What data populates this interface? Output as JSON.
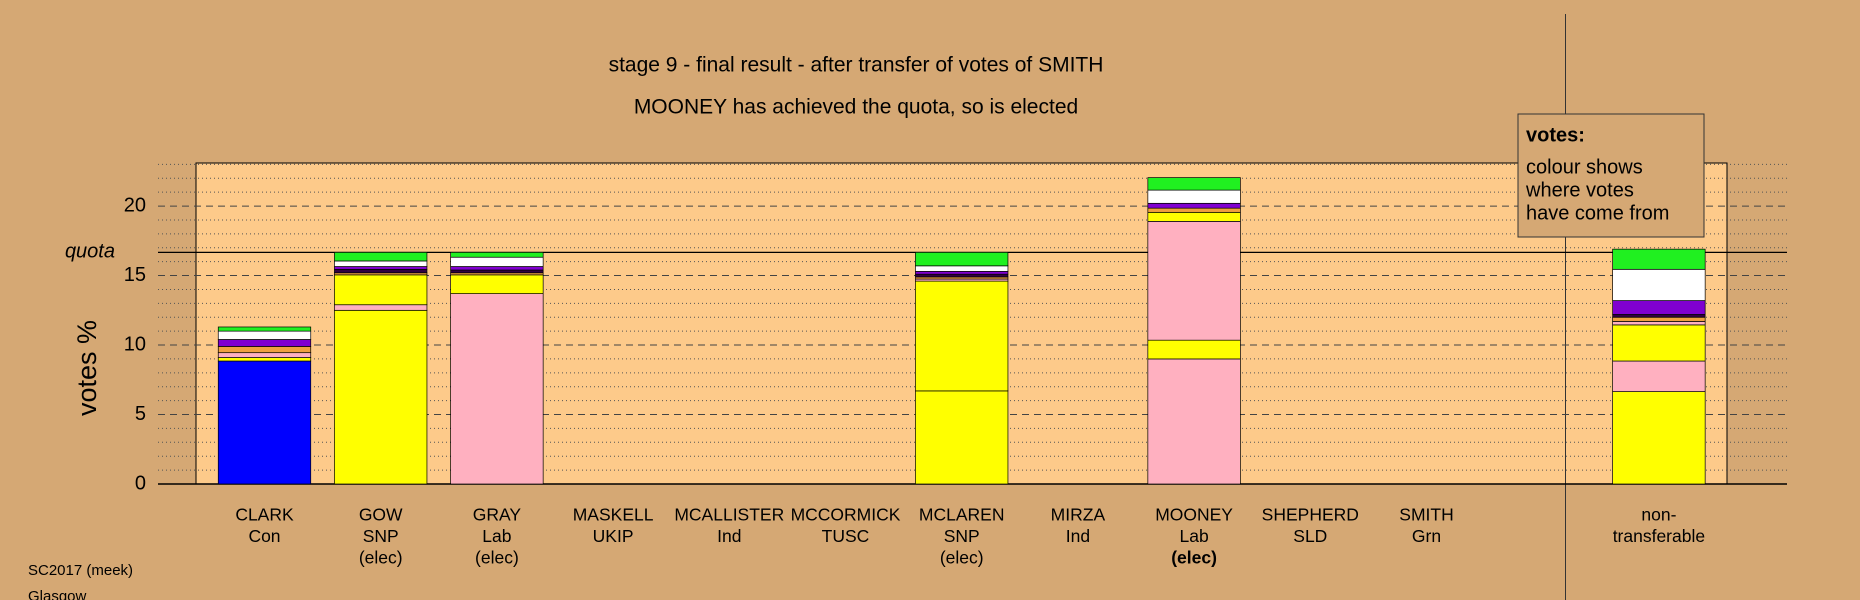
{
  "chart_data": {
    "type": "stacked-bar",
    "title": "stage 9 - final result - after transfer of votes of SMITH",
    "subtitle": "MOONEY has achieved the quota, so is elected",
    "y_label": "votes %",
    "quota_label": "quota",
    "quota": 16.67,
    "categories": [
      [
        "CLARK",
        "Con"
      ],
      [
        "GOW",
        "SNP",
        "(elec)"
      ],
      [
        "GRAY",
        "Lab",
        "(elec)"
      ],
      [
        "MASKELL",
        "UKIP"
      ],
      [
        "MCALLISTER",
        "Ind"
      ],
      [
        "MCCORMICK",
        "TUSC"
      ],
      [
        "MCLAREN",
        "SNP",
        "(elec)"
      ],
      [
        "MIRZA",
        "Ind"
      ],
      [
        "MOONEY",
        "Lab",
        "(elec)"
      ],
      [
        "SHEPHERD",
        "SLD"
      ],
      [
        "SMITH",
        "Grn"
      ],
      null,
      [
        "non-",
        "transferable"
      ]
    ],
    "bold_category": 8,
    "series": [
      {
        "color": "#0000ff",
        "values": [
          8.85,
          0,
          0,
          0,
          0,
          0,
          0,
          0,
          0,
          0,
          0,
          null,
          0
        ]
      },
      {
        "color": "#ffb0c0",
        "values": [
          0,
          0,
          0,
          0,
          0,
          0,
          0,
          0,
          9.0,
          0,
          0,
          null,
          0
        ]
      },
      {
        "color": "#ffff00",
        "values": [
          0.25,
          12.5,
          0,
          0,
          0,
          0,
          6.7,
          0,
          1.35,
          0,
          0,
          null,
          6.65
        ]
      },
      {
        "color": "#ffb0c0",
        "values": [
          0.35,
          0.4,
          13.7,
          0,
          0,
          0,
          0,
          0,
          8.55,
          0,
          0,
          null,
          2.2
        ]
      },
      {
        "color": "#ffff00",
        "values": [
          0,
          2.15,
          1.35,
          0,
          0,
          0,
          7.9,
          0,
          0.65,
          0,
          0,
          null,
          2.6
        ]
      },
      {
        "color": "#ffb0c0",
        "values": [
          0,
          0,
          0,
          0,
          0,
          0,
          0.15,
          0,
          0,
          0,
          0,
          null,
          0.25
        ]
      },
      {
        "color": "#f0a040",
        "values": [
          0.45,
          0.15,
          0.15,
          0,
          0,
          0,
          0.15,
          0,
          0.3,
          0,
          0,
          null,
          0.3
        ]
      },
      {
        "color": "#300040",
        "values": [
          0,
          0.25,
          0.2,
          0,
          0,
          0,
          0.2,
          0,
          0,
          0,
          0,
          null,
          0.2
        ]
      },
      {
        "color": "#8000d0",
        "values": [
          0.5,
          0.2,
          0.25,
          0,
          0,
          0,
          0.2,
          0,
          0.35,
          0,
          0,
          null,
          1.0
        ]
      },
      {
        "color": "#ffffff",
        "values": [
          0.6,
          0.4,
          0.67,
          0,
          0,
          0,
          0.4,
          0,
          0.95,
          0,
          0,
          null,
          2.25
        ]
      },
      {
        "color": "#20f020",
        "values": [
          0.3,
          0.62,
          0.35,
          0,
          0,
          0,
          0.97,
          0,
          0.9,
          0,
          0,
          null,
          1.45
        ]
      }
    ],
    "ylim": [
      0,
      23.1
    ],
    "yticks": [
      0,
      5,
      10,
      15,
      20
    ],
    "minor_yticks": [
      1,
      2,
      3,
      4,
      6,
      7,
      8,
      9,
      11,
      12,
      13,
      14,
      16,
      17,
      18,
      19,
      21,
      22,
      23
    ],
    "grid": true,
    "note": {
      "heading": "votes:",
      "lines": [
        "colour shows",
        "where votes",
        "have come from"
      ]
    },
    "footer": [
      "SC2017 (meek)",
      "Glasgow"
    ]
  }
}
